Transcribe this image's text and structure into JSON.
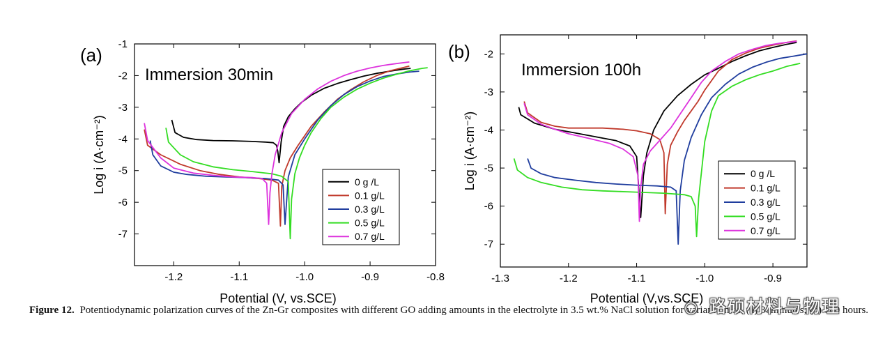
{
  "chart_data": [
    {
      "type": "line",
      "panel_label": "(a)",
      "title": "Immersion 30min",
      "xlabel": "Potential (V, vs.SCE)",
      "ylabel": "Log i (A·cm⁻²)",
      "xlim": [
        -1.26,
        -0.8
      ],
      "ylim": [
        -8,
        -1
      ],
      "xticks": [
        -1.2,
        -1.1,
        -1.0,
        -0.9,
        -0.8
      ],
      "xtick_labels": [
        "-1.2",
        "-1.1",
        "-1.0",
        "-0.9",
        "-0.8"
      ],
      "yticks": [
        -7,
        -6,
        -5,
        -4,
        -3,
        -2,
        -1
      ],
      "ytick_labels": [
        "-7",
        "-6",
        "-5",
        "-4",
        "-3",
        "-2",
        "-1"
      ],
      "legend_position": "center-right",
      "series": [
        {
          "name": "0 g /L",
          "color": "#000000",
          "x": [
            -1.203,
            -1.198,
            -1.185,
            -1.165,
            -1.14,
            -1.11,
            -1.08,
            -1.06,
            -1.048,
            -1.043,
            -1.041,
            -1.039,
            -1.036,
            -1.032,
            -1.025,
            -1.015,
            -1.005,
            -0.99,
            -0.97,
            -0.95,
            -0.93,
            -0.91,
            -0.89,
            -0.87,
            -0.85,
            -0.838
          ],
          "y": [
            -3.4,
            -3.8,
            -3.95,
            -4.02,
            -4.05,
            -4.06,
            -4.08,
            -4.1,
            -4.12,
            -4.2,
            -4.4,
            -4.75,
            -4.1,
            -3.6,
            -3.3,
            -3.05,
            -2.85,
            -2.62,
            -2.4,
            -2.25,
            -2.13,
            -2.02,
            -1.93,
            -1.86,
            -1.8,
            -1.77
          ]
        },
        {
          "name": "0.1 g/L",
          "color": "#c0392b",
          "x": [
            -1.245,
            -1.24,
            -1.22,
            -1.19,
            -1.16,
            -1.13,
            -1.1,
            -1.07,
            -1.05,
            -1.04,
            -1.037,
            -1.035,
            -1.03,
            -1.022,
            -1.01,
            -0.99,
            -0.97,
            -0.95,
            -0.93,
            -0.91,
            -0.89,
            -0.87,
            -0.85,
            -0.84
          ],
          "y": [
            -3.7,
            -4.2,
            -4.5,
            -4.8,
            -5.0,
            -5.12,
            -5.2,
            -5.25,
            -5.3,
            -5.4,
            -6.75,
            -5.5,
            -5.0,
            -4.6,
            -4.2,
            -3.6,
            -3.15,
            -2.75,
            -2.45,
            -2.2,
            -2.0,
            -1.85,
            -1.75,
            -1.7
          ]
        },
        {
          "name": "0.3 g/L",
          "color": "#1f3d9e",
          "x": [
            -1.236,
            -1.232,
            -1.22,
            -1.2,
            -1.18,
            -1.15,
            -1.12,
            -1.09,
            -1.06,
            -1.04,
            -1.033,
            -1.03,
            -1.025,
            -1.015,
            -1.0,
            -0.98,
            -0.96,
            -0.94,
            -0.92,
            -0.9,
            -0.88,
            -0.86,
            -0.84,
            -0.825
          ],
          "y": [
            -4.05,
            -4.5,
            -4.85,
            -5.05,
            -5.12,
            -5.18,
            -5.2,
            -5.22,
            -5.25,
            -5.3,
            -5.45,
            -6.7,
            -5.2,
            -4.5,
            -4.0,
            -3.4,
            -2.95,
            -2.6,
            -2.35,
            -2.17,
            -2.03,
            -1.95,
            -1.89,
            -1.86
          ]
        },
        {
          "name": "0.5 g/L",
          "color": "#33dd22",
          "x": [
            -1.212,
            -1.208,
            -1.19,
            -1.17,
            -1.14,
            -1.11,
            -1.08,
            -1.05,
            -1.035,
            -1.025,
            -1.022,
            -1.02,
            -1.015,
            -1.008,
            -1.0,
            -0.99,
            -0.975,
            -0.96,
            -0.94,
            -0.92,
            -0.9,
            -0.88,
            -0.86,
            -0.84,
            -0.82,
            -0.812
          ],
          "y": [
            -3.65,
            -4.1,
            -4.5,
            -4.72,
            -4.88,
            -4.97,
            -5.03,
            -5.1,
            -5.18,
            -5.35,
            -7.15,
            -5.9,
            -5.1,
            -4.6,
            -4.2,
            -3.8,
            -3.35,
            -3.0,
            -2.68,
            -2.43,
            -2.24,
            -2.08,
            -1.96,
            -1.85,
            -1.77,
            -1.75
          ]
        },
        {
          "name": "0.7 g/L",
          "color": "#dd33dd",
          "x": [
            -1.245,
            -1.24,
            -1.22,
            -1.2,
            -1.17,
            -1.14,
            -1.11,
            -1.08,
            -1.065,
            -1.058,
            -1.055,
            -1.053,
            -1.05,
            -1.045,
            -1.035,
            -1.02,
            -1.0,
            -0.98,
            -0.96,
            -0.94,
            -0.92,
            -0.9,
            -0.88,
            -0.86,
            -0.84
          ],
          "y": [
            -3.5,
            -4.05,
            -4.6,
            -4.92,
            -5.08,
            -5.15,
            -5.2,
            -5.22,
            -5.25,
            -5.4,
            -6.7,
            -5.7,
            -5.1,
            -4.5,
            -3.8,
            -3.2,
            -2.75,
            -2.42,
            -2.18,
            -2.0,
            -1.86,
            -1.76,
            -1.68,
            -1.62,
            -1.57
          ]
        }
      ]
    },
    {
      "type": "line",
      "panel_label": "(b)",
      "title": "Immersion 100h",
      "xlabel": "Potential (V,vs.SCE)",
      "ylabel": "Log i (A·cm⁻²)",
      "xlim": [
        -1.3,
        -0.85
      ],
      "ylim": [
        -7.6,
        -1.5
      ],
      "xticks": [
        -1.3,
        -1.2,
        -1.1,
        -1.0,
        -0.9
      ],
      "xtick_labels": [
        "-1.3",
        "-1.2",
        "-1.1",
        "-1.0",
        "-0.9"
      ],
      "yticks": [
        -7,
        -6,
        -5,
        -4,
        -3,
        -2
      ],
      "ytick_labels": [
        "-7",
        "-6",
        "-5",
        "-4",
        "-3",
        "-2"
      ],
      "legend_position": "bottom-right",
      "series": [
        {
          "name": "0 g /L",
          "color": "#000000",
          "x": [
            -1.273,
            -1.27,
            -1.25,
            -1.22,
            -1.19,
            -1.16,
            -1.13,
            -1.11,
            -1.1,
            -1.096,
            -1.094,
            -1.09,
            -1.085,
            -1.075,
            -1.06,
            -1.04,
            -1.02,
            -1.0,
            -0.98,
            -0.96,
            -0.94,
            -0.92,
            -0.9,
            -0.88,
            -0.865
          ],
          "y": [
            -3.4,
            -3.6,
            -3.82,
            -3.98,
            -4.08,
            -4.18,
            -4.28,
            -4.42,
            -4.7,
            -5.8,
            -6.3,
            -5.2,
            -4.6,
            -4.0,
            -3.5,
            -3.1,
            -2.8,
            -2.55,
            -2.38,
            -2.2,
            -2.05,
            -1.92,
            -1.83,
            -1.75,
            -1.7
          ]
        },
        {
          "name": "0.1 g/L",
          "color": "#c0392b",
          "x": [
            -1.265,
            -1.26,
            -1.24,
            -1.22,
            -1.2,
            -1.18,
            -1.15,
            -1.12,
            -1.1,
            -1.08,
            -1.066,
            -1.06,
            -1.058,
            -1.055,
            -1.05,
            -1.04,
            -1.03,
            -1.02,
            -1.01,
            -1.0,
            -0.98,
            -0.96,
            -0.94,
            -0.92,
            -0.9,
            -0.88,
            -0.865
          ],
          "y": [
            -3.25,
            -3.55,
            -3.8,
            -3.9,
            -3.95,
            -3.95,
            -3.95,
            -3.98,
            -4.02,
            -4.1,
            -4.25,
            -4.6,
            -6.2,
            -4.9,
            -4.4,
            -4.05,
            -3.75,
            -3.5,
            -3.25,
            -2.95,
            -2.45,
            -2.15,
            -1.98,
            -1.85,
            -1.77,
            -1.7,
            -1.66
          ]
        },
        {
          "name": "0.3 g/L",
          "color": "#1f3d9e",
          "x": [
            -1.26,
            -1.255,
            -1.24,
            -1.22,
            -1.19,
            -1.16,
            -1.13,
            -1.1,
            -1.07,
            -1.05,
            -1.042,
            -1.039,
            -1.036,
            -1.03,
            -1.02,
            -1.005,
            -0.99,
            -0.97,
            -0.95,
            -0.93,
            -0.91,
            -0.89,
            -0.87,
            -0.85
          ],
          "y": [
            -4.75,
            -5.0,
            -5.15,
            -5.25,
            -5.32,
            -5.38,
            -5.42,
            -5.45,
            -5.47,
            -5.5,
            -5.6,
            -7.0,
            -5.6,
            -4.8,
            -4.2,
            -3.6,
            -3.15,
            -2.8,
            -2.53,
            -2.35,
            -2.22,
            -2.12,
            -2.06,
            -2.0
          ]
        },
        {
          "name": "0.5 g/L",
          "color": "#33dd22",
          "x": [
            -1.28,
            -1.275,
            -1.26,
            -1.24,
            -1.21,
            -1.18,
            -1.15,
            -1.12,
            -1.09,
            -1.06,
            -1.03,
            -1.02,
            -1.014,
            -1.012,
            -1.009,
            -1.0,
            -0.99,
            -0.98,
            -0.96,
            -0.94,
            -0.92,
            -0.9,
            -0.88,
            -0.86
          ],
          "y": [
            -4.75,
            -5.05,
            -5.25,
            -5.38,
            -5.5,
            -5.57,
            -5.6,
            -5.62,
            -5.64,
            -5.66,
            -5.7,
            -5.75,
            -6.0,
            -6.8,
            -5.8,
            -4.3,
            -3.5,
            -3.1,
            -2.85,
            -2.68,
            -2.55,
            -2.45,
            -2.33,
            -2.25
          ]
        },
        {
          "name": "0.7 g/L",
          "color": "#dd33dd",
          "x": [
            -1.265,
            -1.26,
            -1.24,
            -1.22,
            -1.2,
            -1.17,
            -1.14,
            -1.12,
            -1.105,
            -1.098,
            -1.096,
            -1.094,
            -1.09,
            -1.08,
            -1.065,
            -1.05,
            -1.035,
            -1.02,
            -1.005,
            -0.99,
            -0.97,
            -0.95,
            -0.93,
            -0.91,
            -0.89,
            -0.865
          ],
          "y": [
            -3.3,
            -3.6,
            -3.85,
            -3.98,
            -4.1,
            -4.22,
            -4.35,
            -4.5,
            -4.7,
            -5.2,
            -6.4,
            -5.5,
            -4.9,
            -4.55,
            -4.25,
            -3.95,
            -3.55,
            -3.15,
            -2.75,
            -2.45,
            -2.2,
            -2.0,
            -1.88,
            -1.78,
            -1.72,
            -1.67
          ]
        }
      ]
    }
  ],
  "caption": {
    "label": "Figure 12.",
    "text": "Potentiodynamic polarization curves of the Zn-Gr composites with different GO adding amounts in the electrolyte in 3.5 wt.% NaCl solution for variant times. (a) 30minutes; (b) 100 hours."
  },
  "watermark": {
    "icon": "wechat-icon",
    "text": "路硕材料与物理"
  }
}
